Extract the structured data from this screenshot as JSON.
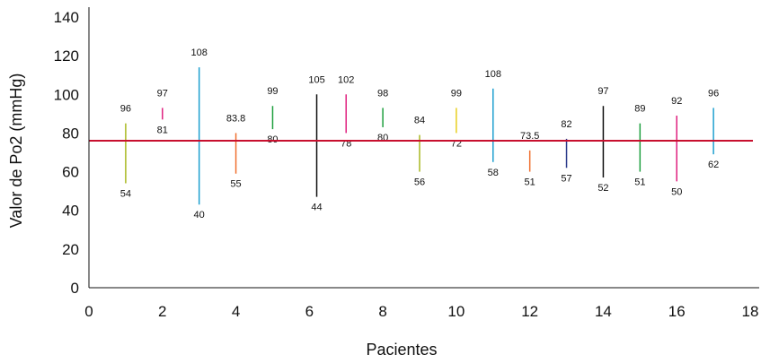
{
  "chart_data": {
    "type": "range-bar",
    "title": "",
    "xlabel": "Pacientes",
    "ylabel": "Valor de Po2 (mmHg)",
    "xlim": [
      0,
      18
    ],
    "ylim": [
      0,
      140
    ],
    "x_ticks": [
      0,
      2,
      4,
      6,
      8,
      10,
      12,
      14,
      16,
      18
    ],
    "y_ticks": [
      0,
      20,
      40,
      60,
      80,
      100,
      120,
      140
    ],
    "grid": false,
    "legend": "none",
    "reference_line": {
      "value": 76,
      "color": "#c8102e"
    },
    "series": [
      {
        "x": 1,
        "low": 54,
        "high": 85,
        "high_label": "96",
        "low_label": "54",
        "color": "#a8b820"
      },
      {
        "x": 2,
        "low": 87,
        "high": 93,
        "high_label": "97",
        "low_label": "81",
        "color": "#e0207f"
      },
      {
        "x": 3,
        "low": 43,
        "high": 114,
        "high_label": "108",
        "low_label": "40",
        "color": "#1fa0d0"
      },
      {
        "x": 4,
        "low": 59,
        "high": 80,
        "high_label": "83.8",
        "low_label": "55",
        "color": "#f07030"
      },
      {
        "x": 5,
        "low": 82,
        "high": 94,
        "high_label": "99",
        "low_label": "80",
        "color": "#20a040"
      },
      {
        "x": 6.2,
        "low": 47,
        "high": 100,
        "high_label": "105",
        "low_label": "44",
        "color": "#111111"
      },
      {
        "x": 7,
        "low": 80,
        "high": 100,
        "high_label": "102",
        "low_label": "78",
        "color": "#e0207f"
      },
      {
        "x": 8,
        "low": 83,
        "high": 93,
        "high_label": "98",
        "low_label": "80",
        "color": "#20a040"
      },
      {
        "x": 9,
        "low": 60,
        "high": 79,
        "high_label": "84",
        "low_label": "56",
        "color": "#a8b820"
      },
      {
        "x": 10,
        "low": 80,
        "high": 93,
        "high_label": "99",
        "low_label": "72",
        "color": "#e8d020"
      },
      {
        "x": 11,
        "low": 65,
        "high": 103,
        "high_label": "108",
        "low_label": "58",
        "color": "#1fa0d0"
      },
      {
        "x": 12,
        "low": 60,
        "high": 71,
        "high_label": "73.5",
        "low_label": "51",
        "color": "#f07030"
      },
      {
        "x": 13,
        "low": 62,
        "high": 77,
        "high_label": "82",
        "low_label": "57",
        "color": "#2a3a8a"
      },
      {
        "x": 14,
        "low": 57,
        "high": 94,
        "high_label": "97",
        "low_label": "52",
        "color": "#111111"
      },
      {
        "x": 15,
        "low": 60,
        "high": 85,
        "high_label": "89",
        "low_label": "51",
        "color": "#20a040"
      },
      {
        "x": 16,
        "low": 55,
        "high": 89,
        "high_label": "92",
        "low_label": "50",
        "color": "#e0207f"
      },
      {
        "x": 17,
        "low": 69,
        "high": 93,
        "high_label": "96",
        "low_label": "62",
        "color": "#1fa0d0"
      }
    ]
  }
}
